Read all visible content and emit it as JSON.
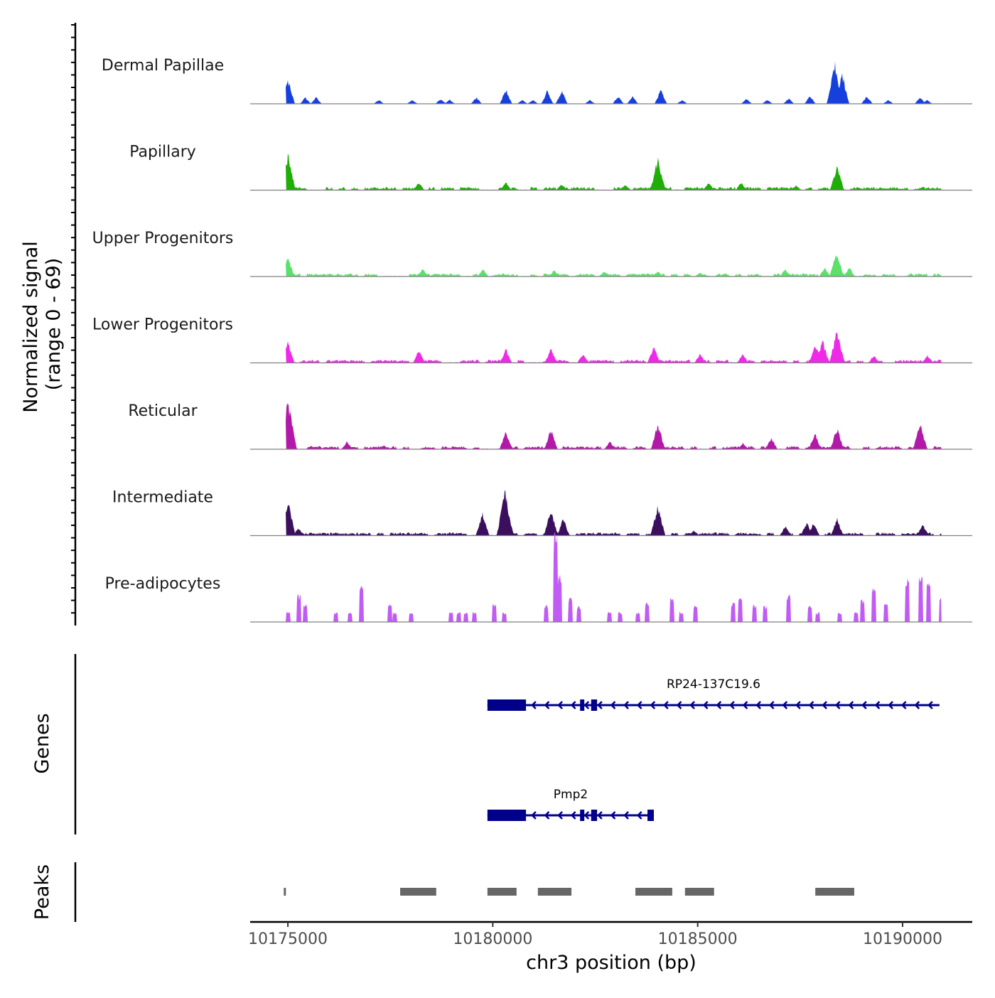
{
  "chart_data": {
    "type": "area",
    "title": "",
    "xlabel": "chr3 position (bp)",
    "ylabel": "Normalized signal\n(range 0 - 69)",
    "ylabel_lines": [
      "Normalized signal",
      "(range 0 - 69)"
    ],
    "xlim": [
      10174080,
      10191700
    ],
    "ylim": [
      0,
      69
    ],
    "x_ticks": [
      10175000,
      10180000,
      10185000,
      10190000
    ],
    "x_tick_labels": [
      "10175000",
      "10180000",
      "10185000",
      "10190000"
    ],
    "grid": false,
    "series": [
      {
        "name": "Dermal Papillae",
        "color": "#1540DD",
        "floor": 0,
        "sparse": false,
        "peaks": [
          [
            10175000,
            19
          ],
          [
            10175430,
            5
          ],
          [
            10175690,
            5
          ],
          [
            10177220,
            3
          ],
          [
            10178035,
            3
          ],
          [
            10178730,
            4
          ],
          [
            10178950,
            3
          ],
          [
            10179600,
            5
          ],
          [
            10180320,
            11
          ],
          [
            10180720,
            3
          ],
          [
            10180980,
            3
          ],
          [
            10181330,
            10
          ],
          [
            10181680,
            10
          ],
          [
            10182370,
            3
          ],
          [
            10183060,
            6
          ],
          [
            10183410,
            6
          ],
          [
            10184100,
            11
          ],
          [
            10184620,
            3
          ],
          [
            10186190,
            4
          ],
          [
            10186700,
            3
          ],
          [
            10187220,
            4
          ],
          [
            10187740,
            6
          ],
          [
            10188350,
            30
          ],
          [
            10188520,
            23
          ],
          [
            10189130,
            6
          ],
          [
            10189650,
            3
          ],
          [
            10190430,
            5
          ],
          [
            10190600,
            3
          ]
        ]
      },
      {
        "name": "Papillary",
        "color": "#1FAE07",
        "floor": 2,
        "sparse": false,
        "peaks": [
          [
            10175000,
            27
          ],
          [
            10178200,
            6
          ],
          [
            10180320,
            6
          ],
          [
            10181680,
            5
          ],
          [
            10183240,
            4
          ],
          [
            10184030,
            25
          ],
          [
            10185270,
            6
          ],
          [
            10186060,
            6
          ],
          [
            10187400,
            4
          ],
          [
            10188400,
            19
          ]
        ]
      },
      {
        "name": "Upper Progenitors",
        "color": "#5BE06A",
        "floor": 2,
        "sparse": false,
        "peaks": [
          [
            10175000,
            15
          ],
          [
            10178290,
            6
          ],
          [
            10179760,
            6
          ],
          [
            10181500,
            5
          ],
          [
            10182720,
            4
          ],
          [
            10184020,
            4
          ],
          [
            10185060,
            3
          ],
          [
            10187140,
            6
          ],
          [
            10188100,
            7
          ],
          [
            10188390,
            20
          ],
          [
            10188700,
            7
          ]
        ]
      },
      {
        "name": "Lower Progenitors",
        "color": "#EE2AE8",
        "floor": 2,
        "sparse": false,
        "peaks": [
          [
            10175000,
            16
          ],
          [
            10178200,
            10
          ],
          [
            10180320,
            11
          ],
          [
            10181420,
            11
          ],
          [
            10182200,
            7
          ],
          [
            10183930,
            13
          ],
          [
            10185060,
            7
          ],
          [
            10186100,
            7
          ],
          [
            10187880,
            14
          ],
          [
            10188050,
            17
          ],
          [
            10188400,
            26
          ],
          [
            10189300,
            6
          ],
          [
            10190610,
            6
          ]
        ]
      },
      {
        "name": "Reticular",
        "color": "#B319A8",
        "floor": 2,
        "sparse": false,
        "peaks": [
          [
            10175000,
            37
          ],
          [
            10176440,
            6
          ],
          [
            10177340,
            3
          ],
          [
            10180320,
            14
          ],
          [
            10181420,
            16
          ],
          [
            10182860,
            6
          ],
          [
            10184030,
            20
          ],
          [
            10186100,
            5
          ],
          [
            10186800,
            9
          ],
          [
            10187860,
            13
          ],
          [
            10188400,
            17
          ],
          [
            10190430,
            20
          ]
        ]
      },
      {
        "name": "Intermediate",
        "color": "#3B0F5E",
        "floor": 2,
        "sparse": false,
        "peaks": [
          [
            10175000,
            26
          ],
          [
            10175260,
            6
          ],
          [
            10179750,
            17
          ],
          [
            10180300,
            33
          ],
          [
            10181420,
            20
          ],
          [
            10181720,
            13
          ],
          [
            10184030,
            23
          ],
          [
            10184900,
            4
          ],
          [
            10187140,
            7
          ],
          [
            10187660,
            10
          ],
          [
            10187830,
            10
          ],
          [
            10188400,
            13
          ],
          [
            10190490,
            9
          ]
        ]
      },
      {
        "name": "Pre-adipocytes",
        "color": "#C05CF5",
        "floor": 0,
        "sparse": true,
        "peaks": [
          [
            10175000,
            7
          ],
          [
            10175260,
            20
          ],
          [
            10175430,
            13
          ],
          [
            10176170,
            7
          ],
          [
            10176520,
            7
          ],
          [
            10176800,
            26
          ],
          [
            10177490,
            13
          ],
          [
            10177610,
            7
          ],
          [
            10178010,
            7
          ],
          [
            10178980,
            7
          ],
          [
            10179170,
            7
          ],
          [
            10179340,
            7
          ],
          [
            10179560,
            7
          ],
          [
            10180030,
            13
          ],
          [
            10180280,
            7
          ],
          [
            10181300,
            12
          ],
          [
            10181520,
            63
          ],
          [
            10181640,
            34
          ],
          [
            10181900,
            17
          ],
          [
            10182100,
            12
          ],
          [
            10182850,
            7
          ],
          [
            10183110,
            7
          ],
          [
            10183540,
            7
          ],
          [
            10183760,
            14
          ],
          [
            10184380,
            17
          ],
          [
            10184600,
            7
          ],
          [
            10184950,
            12
          ],
          [
            10185860,
            14
          ],
          [
            10186040,
            17
          ],
          [
            10186380,
            12
          ],
          [
            10186650,
            12
          ],
          [
            10187220,
            20
          ],
          [
            10187740,
            13
          ],
          [
            10187920,
            7
          ],
          [
            10188470,
            7
          ],
          [
            10188870,
            7
          ],
          [
            10189020,
            16
          ],
          [
            10189300,
            26
          ],
          [
            10189590,
            13
          ],
          [
            10190110,
            31
          ],
          [
            10190450,
            34
          ],
          [
            10190630,
            29
          ],
          [
            10190940,
            17
          ]
        ]
      }
    ],
    "genes": [
      {
        "name": "RP24-137C19.6",
        "strand": "-",
        "start": 10179870,
        "end": 10190900,
        "exons": [
          [
            10179870,
            10180810
          ],
          [
            10182130,
            10182230
          ],
          [
            10182400,
            10182545
          ]
        ]
      },
      {
        "name": "Pmp2",
        "strand": "-",
        "start": 10179870,
        "end": 10183930,
        "exons": [
          [
            10179870,
            10180810
          ],
          [
            10182130,
            10182230
          ],
          [
            10182400,
            10182545
          ],
          [
            10183775,
            10183930
          ]
        ]
      }
    ],
    "peaks_track": [
      [
        10174900,
        10174950
      ],
      [
        10177740,
        10178620
      ],
      [
        10179870,
        10180580
      ],
      [
        10181100,
        10181920
      ],
      [
        10183480,
        10184380
      ],
      [
        10184690,
        10185400
      ],
      [
        10187870,
        10188820
      ]
    ],
    "panel_labels": {
      "genes": "Genes",
      "peaks": "Peaks"
    },
    "colors": {
      "gene": "#00008B",
      "peak": "#666666",
      "baseline": "#808080"
    }
  }
}
